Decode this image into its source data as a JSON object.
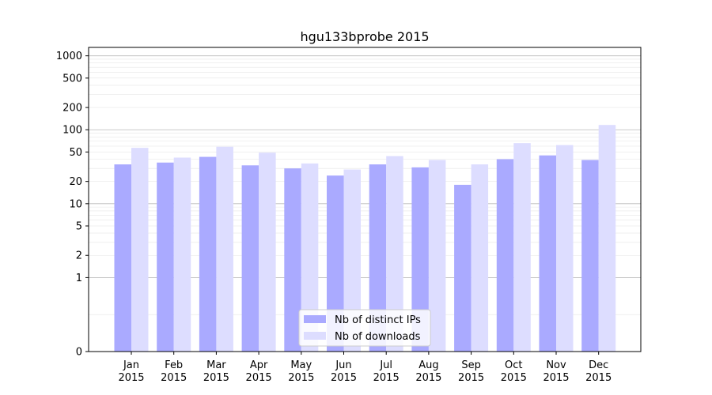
{
  "chart_data": {
    "type": "bar",
    "title": "hgu133bprobe 2015",
    "xlabel": "",
    "ylabel": "",
    "yscale": "symlog",
    "ylim": [
      0,
      1300
    ],
    "yticks": [
      0,
      1,
      2,
      5,
      10,
      20,
      50,
      100,
      200,
      500,
      1000
    ],
    "ytick_labels": [
      "0",
      "1",
      "2",
      "5",
      "10",
      "20",
      "50",
      "100",
      "200",
      "500",
      "1000"
    ],
    "categories": [
      "Jan\n2015",
      "Feb\n2015",
      "Mar\n2015",
      "Apr\n2015",
      "May\n2015",
      "Jun\n2015",
      "Jul\n2015",
      "Aug\n2015",
      "Sep\n2015",
      "Oct\n2015",
      "Nov\n2015",
      "Dec\n2015"
    ],
    "series": [
      {
        "name": "Nb of distinct IPs",
        "color": "#aaaaff",
        "values": [
          34,
          36,
          43,
          33,
          30,
          24,
          34,
          31,
          18,
          40,
          45,
          39
        ]
      },
      {
        "name": "Nb of downloads",
        "color": "#ddddff",
        "values": [
          57,
          42,
          59,
          49,
          35,
          29,
          44,
          39,
          34,
          66,
          62,
          116
        ]
      }
    ],
    "grid": true,
    "legend_position": "bottom-center"
  }
}
